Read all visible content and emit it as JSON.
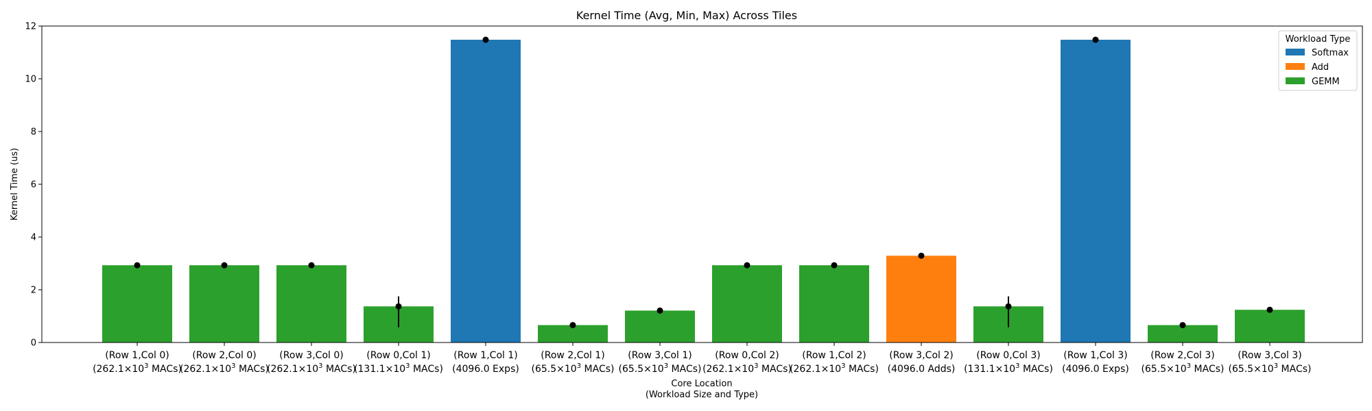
{
  "chart_data": {
    "type": "bar",
    "title": "Kernel Time (Avg, Min, Max) Across Tiles",
    "xlabel": [
      "Core Location",
      "(Workload Size and Type)"
    ],
    "ylabel": "Kernel Time (us)",
    "ylim": [
      0,
      12
    ],
    "yticks": [
      0,
      2,
      4,
      6,
      8,
      10,
      12
    ],
    "grid": false,
    "legend": {
      "title": "Workload Type",
      "placement": "top-right",
      "entries": [
        {
          "name": "Softmax",
          "color": "#1f77b4"
        },
        {
          "name": "Add",
          "color": "#ff7f0e"
        },
        {
          "name": "GEMM",
          "color": "#2ca02c"
        }
      ]
    },
    "colors": {
      "Softmax": "#1f77b4",
      "Add": "#ff7f0e",
      "GEMM": "#2ca02c"
    },
    "categories": [
      {
        "line1": "(Row 1,Col 0)",
        "size": "262.1",
        "exp": "3",
        "unit": "MACs)",
        "type": "GEMM",
        "avg": 2.93,
        "min": 2.9,
        "max": 2.96
      },
      {
        "line1": "(Row 2,Col 0)",
        "size": "262.1",
        "exp": "3",
        "unit": "MACs)",
        "type": "GEMM",
        "avg": 2.93,
        "min": 2.9,
        "max": 2.96
      },
      {
        "line1": "(Row 3,Col 0)",
        "size": "262.1",
        "exp": "3",
        "unit": "MACs)",
        "type": "GEMM",
        "avg": 2.93,
        "min": 2.9,
        "max": 2.96
      },
      {
        "line1": "(Row 0,Col 1)",
        "size": "131.1",
        "exp": "3",
        "unit": "MACs)",
        "type": "GEMM",
        "avg": 1.37,
        "min": 0.58,
        "max": 1.75
      },
      {
        "line1": "(Row 1,Col 1)",
        "plain": "(4096.0 Exps)",
        "type": "Softmax",
        "avg": 11.48,
        "min": 11.45,
        "max": 11.5
      },
      {
        "line1": "(Row 2,Col 1)",
        "size": "65.5",
        "exp": "3",
        "unit": "MACs)",
        "type": "GEMM",
        "avg": 0.66,
        "min": 0.64,
        "max": 0.68
      },
      {
        "line1": "(Row 3,Col 1)",
        "size": "65.5",
        "exp": "3",
        "unit": "MACs)",
        "type": "GEMM",
        "avg": 1.21,
        "min": 1.19,
        "max": 1.23
      },
      {
        "line1": "(Row 0,Col 2)",
        "size": "262.1",
        "exp": "3",
        "unit": "MACs)",
        "type": "GEMM",
        "avg": 2.93,
        "min": 2.9,
        "max": 2.96
      },
      {
        "line1": "(Row 1,Col 2)",
        "size": "262.1",
        "exp": "3",
        "unit": "MACs)",
        "type": "GEMM",
        "avg": 2.93,
        "min": 2.9,
        "max": 2.96
      },
      {
        "line1": "(Row 3,Col 2)",
        "plain": "(4096.0 Adds)",
        "type": "Add",
        "avg": 3.29,
        "min": 3.27,
        "max": 3.31
      },
      {
        "line1": "(Row 0,Col 3)",
        "size": "131.1",
        "exp": "3",
        "unit": "MACs)",
        "type": "GEMM",
        "avg": 1.37,
        "min": 0.58,
        "max": 1.75
      },
      {
        "line1": "(Row 1,Col 3)",
        "plain": "(4096.0 Exps)",
        "type": "Softmax",
        "avg": 11.48,
        "min": 11.45,
        "max": 11.5
      },
      {
        "line1": "(Row 2,Col 3)",
        "size": "65.5",
        "exp": "3",
        "unit": "MACs)",
        "type": "GEMM",
        "avg": 0.66,
        "min": 0.64,
        "max": 0.68
      },
      {
        "line1": "(Row 3,Col 3)",
        "size": "65.5",
        "exp": "3",
        "unit": "MACs)",
        "type": "GEMM",
        "avg": 1.24,
        "min": 1.22,
        "max": 1.26
      }
    ]
  }
}
